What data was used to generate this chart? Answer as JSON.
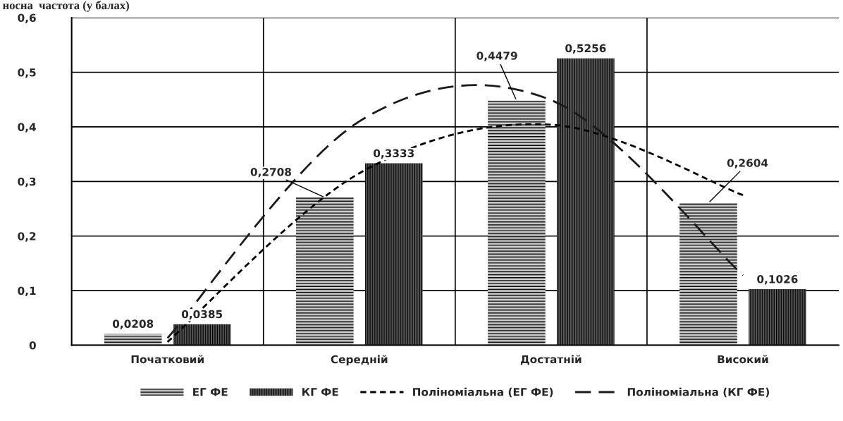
{
  "chart_data": {
    "type": "bar",
    "title": "носна  частота (у балах)",
    "categories": [
      "Початковий",
      "Середній",
      "Достатній",
      "Високий"
    ],
    "series": [
      {
        "name": "ЕГ ФЕ",
        "color": "#d0d0d0",
        "values": [
          0.0208,
          0.2708,
          0.4479,
          0.2604
        ],
        "value_labels": [
          "0,0208",
          "0,2708",
          "0,4479",
          "0,2604"
        ]
      },
      {
        "name": "КГ ФЕ",
        "color": "#606060",
        "values": [
          0.0385,
          0.3333,
          0.5256,
          0.1026
        ],
        "value_labels": [
          "0,0385",
          "0,3333",
          "0,5256",
          "0,1026"
        ]
      },
      {
        "name": "Поліноміальна (ЕГ ФЕ)",
        "type": "line",
        "line_style": "dotted",
        "color": "#000000",
        "values": [
          0.006,
          0.315,
          0.404,
          0.275
        ]
      },
      {
        "name": "Поліноміальна (КГ ФЕ)",
        "type": "line",
        "line_style": "dashed",
        "color": "#1a1a1a",
        "values": [
          0.013,
          0.41,
          0.449,
          0.128
        ]
      }
    ],
    "ylim": [
      0,
      0.6
    ],
    "yticks": [
      0,
      {
        "value": 0.1,
        "label": "0,1"
      },
      {
        "value": 0.2,
        "label": "0,2"
      },
      {
        "value": 0.3,
        "label": "0,3"
      },
      {
        "value": 0.4,
        "label": "0,4"
      },
      {
        "value": 0.5,
        "label": "0,5"
      },
      {
        "value": 0.6,
        "label": "0,6"
      }
    ],
    "grid": "y",
    "legend": "bottom"
  }
}
